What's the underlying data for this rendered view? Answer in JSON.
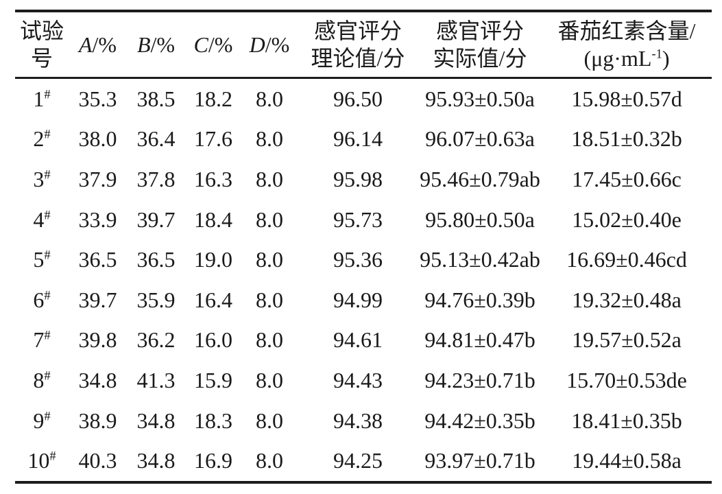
{
  "table": {
    "title_semantic": "orthogonal-test-results",
    "header": {
      "test_no": {
        "line1": "试验",
        "line2": "号"
      },
      "factor_a": {
        "symbol": "A",
        "unit": "/%"
      },
      "factor_b": {
        "symbol": "B",
        "unit": "/%"
      },
      "factor_c": {
        "symbol": "C",
        "unit": "/%"
      },
      "factor_d": {
        "symbol": "D",
        "unit": "/%"
      },
      "sensory_theory": {
        "line1": "感官评分",
        "line2": "理论值/分"
      },
      "sensory_actual": {
        "line1": "感官评分",
        "line2": "实际值/分"
      },
      "lycopene": {
        "line1": "番茄红素含量/",
        "line2_pre": "(μg·mL",
        "line2_sup": "-1",
        "line2_post": ")"
      }
    },
    "rows": [
      {
        "no": "1",
        "no_sup": "#",
        "a": "35.3",
        "b": "38.5",
        "c": "18.2",
        "d": "8.0",
        "theory": "96.50",
        "actual": "95.93±0.50a",
        "lycopene": "15.98±0.57d"
      },
      {
        "no": "2",
        "no_sup": "#",
        "a": "38.0",
        "b": "36.4",
        "c": "17.6",
        "d": "8.0",
        "theory": "96.14",
        "actual": "96.07±0.63a",
        "lycopene": "18.51±0.32b"
      },
      {
        "no": "3",
        "no_sup": "#",
        "a": "37.9",
        "b": "37.8",
        "c": "16.3",
        "d": "8.0",
        "theory": "95.98",
        "actual": "95.46±0.79ab",
        "lycopene": "17.45±0.66c"
      },
      {
        "no": "4",
        "no_sup": "#",
        "a": "33.9",
        "b": "39.7",
        "c": "18.4",
        "d": "8.0",
        "theory": "95.73",
        "actual": "95.80±0.50a",
        "lycopene": "15.02±0.40e"
      },
      {
        "no": "5",
        "no_sup": "#",
        "a": "36.5",
        "b": "36.5",
        "c": "19.0",
        "d": "8.0",
        "theory": "95.36",
        "actual": "95.13±0.42ab",
        "lycopene": "16.69±0.46cd"
      },
      {
        "no": "6",
        "no_sup": "#",
        "a": "39.7",
        "b": "35.9",
        "c": "16.4",
        "d": "8.0",
        "theory": "94.99",
        "actual": "94.76±0.39b",
        "lycopene": "19.32±0.48a"
      },
      {
        "no": "7",
        "no_sup": "#",
        "a": "39.8",
        "b": "36.2",
        "c": "16.0",
        "d": "8.0",
        "theory": "94.61",
        "actual": "94.81±0.47b",
        "lycopene": "19.57±0.52a"
      },
      {
        "no": "8",
        "no_sup": "#",
        "a": "34.8",
        "b": "41.3",
        "c": "15.9",
        "d": "8.0",
        "theory": "94.43",
        "actual": "94.23±0.71b",
        "lycopene": "15.70±0.53de"
      },
      {
        "no": "9",
        "no_sup": "#",
        "a": "38.9",
        "b": "34.8",
        "c": "18.3",
        "d": "8.0",
        "theory": "94.38",
        "actual": "94.42±0.35b",
        "lycopene": "18.41±0.35b"
      },
      {
        "no": "10",
        "no_sup": "#",
        "a": "40.3",
        "b": "34.8",
        "c": "16.9",
        "d": "8.0",
        "theory": "94.25",
        "actual": "93.97±0.71b",
        "lycopene": "19.44±0.58a"
      }
    ],
    "colors": {
      "text": "#1a1a1a",
      "rule": "#1c1c1c",
      "background": "#ffffff"
    }
  }
}
